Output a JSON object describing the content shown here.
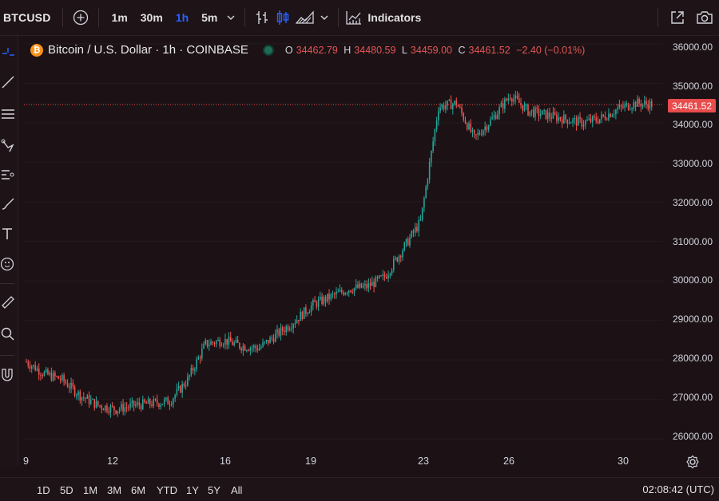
{
  "toolbar": {
    "symbol": "BTCUSD",
    "intervals": [
      "1m",
      "30m",
      "1h",
      "5m"
    ],
    "active_interval": "1h",
    "indicators_label": "Indicators"
  },
  "legend": {
    "title": "Bitcoin / U.S. Dollar · 1h · COINBASE",
    "o_label": "O",
    "o_value": "34462.79",
    "h_label": "H",
    "h_value": "34480.59",
    "l_label": "L",
    "l_value": "34459.00",
    "c_label": "C",
    "c_value": "34461.52",
    "change": "−2.40 (−0.01%)"
  },
  "price_scale": [
    "36000.00",
    "35000.00",
    "34000.00",
    "33000.00",
    "32000.00",
    "31000.00",
    "30000.00",
    "29000.00",
    "28000.00",
    "27000.00",
    "26000.00"
  ],
  "last_price": "34461.52",
  "time_labels": [
    "9",
    "12",
    "16",
    "19",
    "23",
    "26",
    "30"
  ],
  "ranges": [
    "1D",
    "5D",
    "1M",
    "3M",
    "6M",
    "YTD",
    "1Y",
    "5Y",
    "All"
  ],
  "clock": "02:08:42 (UTC)",
  "colors": {
    "up": "#26a69a",
    "down": "#ef5350",
    "bg": "#1c1215",
    "accent": "#2962ff"
  },
  "chart_data": {
    "type": "candlestick",
    "ylim": [
      25600,
      36200
    ],
    "last_price": 34461.52,
    "x_ticks": [
      "9",
      "12",
      "16",
      "19",
      "23",
      "26",
      "30"
    ],
    "series": [
      {
        "values": [
          27950,
          27650,
          27500,
          27100,
          26850,
          26750,
          26850,
          26900,
          26950,
          27500,
          28400,
          28500,
          28350,
          28300,
          28650,
          29000,
          29400,
          29600,
          29800,
          29850,
          30100,
          30800,
          31500,
          34400,
          34500,
          33600,
          34100,
          34700,
          34300,
          34200,
          34100,
          34000,
          34100,
          34350,
          34500,
          34460
        ]
      }
    ]
  }
}
